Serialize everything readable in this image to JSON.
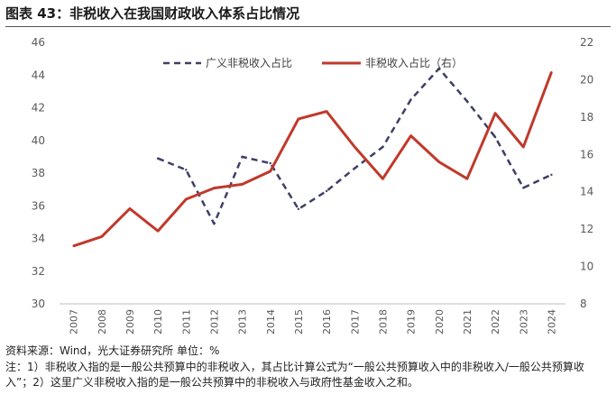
{
  "header": {
    "title": "图表 43：非税收入在我国财政收入体系占比情况"
  },
  "chart_data": {
    "type": "line",
    "categories": [
      "2007",
      "2008",
      "2009",
      "2010",
      "2011",
      "2012",
      "2013",
      "2014",
      "2015",
      "2016",
      "2017",
      "2018",
      "2019",
      "2020",
      "2021",
      "2022",
      "2023",
      "2024"
    ],
    "y_left": {
      "min": 30,
      "max": 46,
      "step": 2,
      "ticks": [
        "30",
        "32",
        "34",
        "36",
        "38",
        "40",
        "42",
        "44",
        "46"
      ]
    },
    "y_right": {
      "min": 8,
      "max": 22,
      "step": 2,
      "ticks": [
        "8",
        "10",
        "12",
        "14",
        "16",
        "18",
        "20",
        "22"
      ]
    },
    "series": [
      {
        "name": "广义非税收入占比",
        "axis": "left",
        "style": "dashed",
        "color": "#3f3f66",
        "values": [
          null,
          null,
          null,
          38.9,
          38.2,
          34.9,
          39.0,
          38.6,
          35.8,
          36.9,
          38.3,
          39.6,
          42.5,
          44.4,
          42.4,
          40.2,
          37.1,
          37.9
        ]
      },
      {
        "name": "非税收入占比（右）",
        "axis": "right",
        "style": "solid",
        "color": "#c0392b",
        "values": [
          11.1,
          11.6,
          13.1,
          11.9,
          13.6,
          14.2,
          14.4,
          15.1,
          17.9,
          18.3,
          16.4,
          14.7,
          17.0,
          15.6,
          14.7,
          18.2,
          16.4,
          20.4
        ]
      }
    ]
  },
  "footer": {
    "source": "资料来源：Wind，光大证券研究所  单位：%",
    "note": "注：1）非税收入指的是一般公共预算中的非税收入，其占比计算公式为“一般公共预算收入中的非税收入/一般公共预算收入”；2）这里广义非税收入指的是一般公共预算中的非税收入与政府性基金收入之和。"
  }
}
